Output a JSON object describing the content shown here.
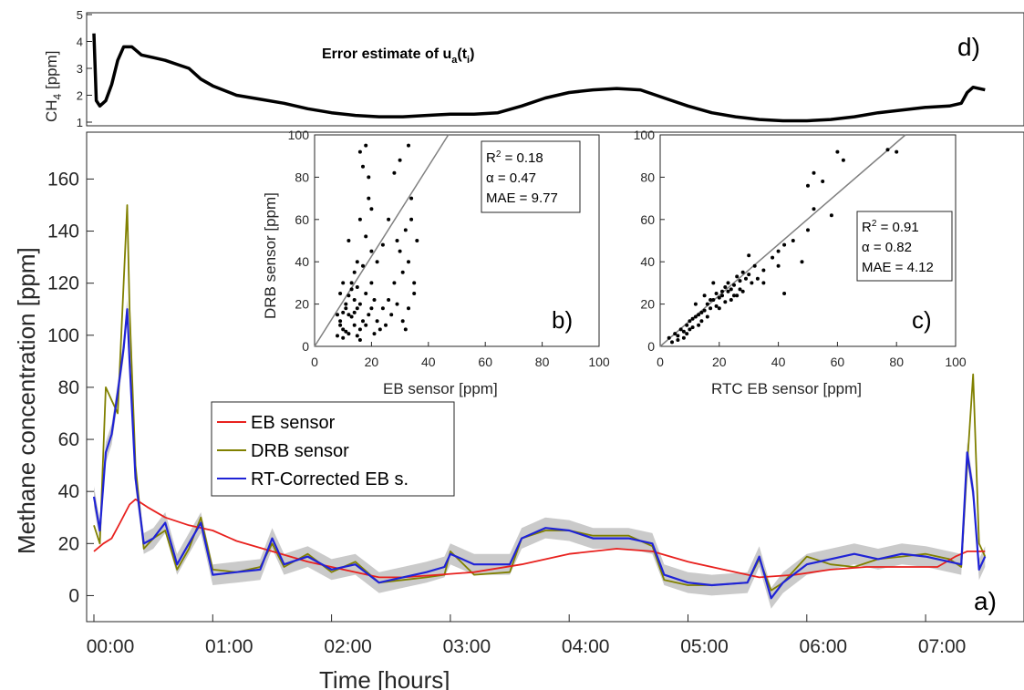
{
  "chart_data": [
    {
      "id": "a",
      "type": "line",
      "panel_label": "a)",
      "xlabel": "Time [hours]",
      "ylabel": "Methane concentration [ppm]",
      "x_tick_labels": [
        "00:00",
        "01:00",
        "02:00",
        "03:00",
        "04:00",
        "05:00",
        "06:00",
        "07:00"
      ],
      "x_tick_values_hours": [
        0,
        1,
        2,
        3,
        4,
        5,
        6,
        7
      ],
      "xlim_hours": [
        0,
        7.5
      ],
      "ylim": [
        -10,
        178
      ],
      "y_ticks": [
        0,
        20,
        40,
        60,
        80,
        100,
        120,
        140,
        160
      ],
      "grid": false,
      "legend_position": "middle-left",
      "series": [
        {
          "name": "EB sensor",
          "color": "#e8211e",
          "x_hours": [
            0,
            0.08,
            0.15,
            0.22,
            0.3,
            0.35,
            0.45,
            0.6,
            0.8,
            1.0,
            1.2,
            1.5,
            1.8,
            2.1,
            2.4,
            2.6,
            2.9,
            3.2,
            3.6,
            4.0,
            4.4,
            4.7,
            5.0,
            5.3,
            5.6,
            5.9,
            6.2,
            6.5,
            6.8,
            7.1,
            7.25,
            7.35,
            7.5
          ],
          "values": [
            17,
            20,
            22,
            28,
            35,
            37,
            34,
            30,
            27,
            25,
            21,
            17,
            13,
            10,
            7,
            7,
            8,
            9,
            12,
            16,
            18,
            17,
            13,
            10,
            7,
            8,
            10,
            11,
            11,
            11,
            15,
            17,
            17
          ]
        },
        {
          "name": "DRB sensor",
          "color": "#808000",
          "x_hours": [
            0,
            0.05,
            0.1,
            0.15,
            0.2,
            0.25,
            0.28,
            0.3,
            0.35,
            0.42,
            0.5,
            0.6,
            0.7,
            0.8,
            0.9,
            1.0,
            1.2,
            1.4,
            1.5,
            1.6,
            1.8,
            2.0,
            2.2,
            2.4,
            2.6,
            2.8,
            2.95,
            3.0,
            3.2,
            3.5,
            3.6,
            3.8,
            4.0,
            4.2,
            4.5,
            4.7,
            4.8,
            5.0,
            5.2,
            5.5,
            5.6,
            5.7,
            5.8,
            6.0,
            6.2,
            6.4,
            6.6,
            6.8,
            7.0,
            7.2,
            7.3,
            7.35,
            7.4,
            7.45,
            7.5
          ],
          "values": [
            27,
            20,
            80,
            75,
            70,
            120,
            150,
            110,
            50,
            18,
            22,
            25,
            10,
            18,
            30,
            10,
            9,
            11,
            20,
            11,
            16,
            9,
            13,
            5,
            6,
            7,
            8,
            17,
            8,
            9,
            22,
            25,
            25,
            23,
            23,
            19,
            6,
            4,
            4,
            5,
            14,
            2,
            5,
            15,
            12,
            11,
            14,
            15,
            16,
            14,
            11,
            50,
            85,
            20,
            15
          ]
        },
        {
          "name": "RT-Corrected EB s.",
          "color": "#1f23d6",
          "x_hours": [
            0,
            0.05,
            0.1,
            0.15,
            0.2,
            0.25,
            0.28,
            0.3,
            0.35,
            0.42,
            0.5,
            0.6,
            0.7,
            0.8,
            0.9,
            1.0,
            1.2,
            1.4,
            1.5,
            1.6,
            1.8,
            2.0,
            2.2,
            2.4,
            2.6,
            2.8,
            2.95,
            3.0,
            3.2,
            3.5,
            3.6,
            3.8,
            4.0,
            4.2,
            4.5,
            4.7,
            4.8,
            5.0,
            5.2,
            5.5,
            5.6,
            5.7,
            5.8,
            6.0,
            6.2,
            6.4,
            6.6,
            6.8,
            7.0,
            7.2,
            7.3,
            7.35,
            7.4,
            7.45,
            7.5
          ],
          "values": [
            38,
            25,
            55,
            62,
            78,
            95,
            110,
            90,
            45,
            20,
            22,
            28,
            12,
            20,
            28,
            8,
            9,
            10,
            22,
            12,
            15,
            10,
            12,
            5,
            7,
            9,
            11,
            16,
            12,
            12,
            22,
            26,
            25,
            22,
            22,
            20,
            8,
            5,
            4,
            5,
            15,
            -1,
            5,
            12,
            14,
            16,
            14,
            16,
            15,
            13,
            12,
            55,
            40,
            10,
            15
          ]
        }
      ]
    },
    {
      "id": "b",
      "type": "scatter",
      "panel_label": "b)",
      "xlabel": "EB sensor [ppm]",
      "ylabel": "DRB sensor [ppm]",
      "xlim": [
        0,
        100
      ],
      "ylim": [
        0,
        100
      ],
      "x_ticks": [
        0,
        20,
        40,
        60,
        80,
        100
      ],
      "y_ticks": [
        0,
        20,
        40,
        60,
        80,
        100
      ],
      "fit_line": {
        "x": [
          0,
          47
        ],
        "y": [
          0,
          100
        ]
      },
      "annotation_lines": [
        {
          "main": "R",
          "sup": "2",
          "rest": " = 0.18"
        },
        {
          "main": "α",
          "sup": "",
          "rest": " = 0.47"
        },
        {
          "main": "MAE",
          "sup": "",
          "rest": " = 9.77"
        }
      ],
      "points": [
        [
          8,
          5
        ],
        [
          9,
          12
        ],
        [
          10,
          8
        ],
        [
          11,
          20
        ],
        [
          9,
          25
        ],
        [
          12,
          15
        ],
        [
          13,
          30
        ],
        [
          10,
          4
        ],
        [
          14,
          22
        ],
        [
          15,
          40
        ],
        [
          16,
          60
        ],
        [
          17,
          85
        ],
        [
          18,
          95
        ],
        [
          16,
          92
        ],
        [
          19,
          70
        ],
        [
          20,
          45
        ],
        [
          14,
          10
        ],
        [
          12,
          6
        ],
        [
          11,
          18
        ],
        [
          13,
          27
        ],
        [
          15,
          18
        ],
        [
          17,
          12
        ],
        [
          18,
          25
        ],
        [
          20,
          30
        ],
        [
          19,
          15
        ],
        [
          16,
          8
        ],
        [
          22,
          12
        ],
        [
          24,
          18
        ],
        [
          26,
          22
        ],
        [
          28,
          30
        ],
        [
          30,
          45
        ],
        [
          32,
          55
        ],
        [
          34,
          60
        ],
        [
          33,
          40
        ],
        [
          31,
          35
        ],
        [
          29,
          20
        ],
        [
          27,
          15
        ],
        [
          25,
          10
        ],
        [
          23,
          8
        ],
        [
          21,
          6
        ],
        [
          35,
          25
        ],
        [
          36,
          50
        ],
        [
          34,
          70
        ],
        [
          33,
          95
        ],
        [
          30,
          88
        ],
        [
          28,
          82
        ],
        [
          26,
          60
        ],
        [
          24,
          48
        ],
        [
          22,
          40
        ],
        [
          10,
          30
        ],
        [
          9,
          10
        ],
        [
          8,
          15
        ],
        [
          12,
          50
        ],
        [
          14,
          35
        ],
        [
          15,
          28
        ],
        [
          17,
          38
        ],
        [
          18,
          52
        ],
        [
          19,
          80
        ],
        [
          20,
          65
        ],
        [
          21,
          22
        ],
        [
          11,
          7
        ],
        [
          13,
          14
        ],
        [
          15,
          5
        ],
        [
          16,
          3
        ],
        [
          10,
          16
        ],
        [
          12,
          24
        ],
        [
          14,
          16
        ],
        [
          16,
          20
        ],
        [
          18,
          10
        ],
        [
          20,
          18
        ],
        [
          29,
          50
        ],
        [
          31,
          12
        ],
        [
          33,
          18
        ],
        [
          35,
          30
        ],
        [
          32,
          8
        ]
      ]
    },
    {
      "id": "c",
      "type": "scatter",
      "panel_label": "c)",
      "xlabel": "RTC EB sensor [ppm]",
      "ylabel": "",
      "xlim": [
        0,
        100
      ],
      "ylim": [
        0,
        100
      ],
      "x_ticks": [
        0,
        20,
        40,
        60,
        80,
        100
      ],
      "y_ticks": [
        0,
        20,
        40,
        60,
        80,
        100
      ],
      "fit_line": {
        "x": [
          0,
          83
        ],
        "y": [
          0,
          100
        ]
      },
      "annotation_lines": [
        {
          "main": "R",
          "sup": "2",
          "rest": " = 0.91"
        },
        {
          "main": "α",
          "sup": "",
          "rest": " = 0.82"
        },
        {
          "main": "MAE",
          "sup": "",
          "rest": " = 4.12"
        }
      ],
      "points": [
        [
          3,
          4
        ],
        [
          5,
          6
        ],
        [
          6,
          5
        ],
        [
          7,
          8
        ],
        [
          8,
          7
        ],
        [
          9,
          10
        ],
        [
          10,
          12
        ],
        [
          11,
          9
        ],
        [
          12,
          14
        ],
        [
          13,
          15
        ],
        [
          14,
          12
        ],
        [
          15,
          17
        ],
        [
          16,
          20
        ],
        [
          17,
          18
        ],
        [
          18,
          22
        ],
        [
          19,
          25
        ],
        [
          20,
          23
        ],
        [
          21,
          26
        ],
        [
          22,
          28
        ],
        [
          23,
          30
        ],
        [
          24,
          27
        ],
        [
          25,
          29
        ],
        [
          26,
          33
        ],
        [
          27,
          31
        ],
        [
          28,
          35
        ],
        [
          30,
          34
        ],
        [
          32,
          38
        ],
        [
          35,
          36
        ],
        [
          38,
          42
        ],
        [
          40,
          45
        ],
        [
          42,
          48
        ],
        [
          45,
          50
        ],
        [
          48,
          40
        ],
        [
          50,
          55
        ],
        [
          52,
          65
        ],
        [
          55,
          78
        ],
        [
          58,
          62
        ],
        [
          60,
          92
        ],
        [
          62,
          88
        ],
        [
          52,
          82
        ],
        [
          50,
          76
        ],
        [
          30,
          43
        ],
        [
          40,
          38
        ],
        [
          35,
          30
        ],
        [
          42,
          25
        ],
        [
          18,
          30
        ],
        [
          15,
          24
        ],
        [
          12,
          20
        ],
        [
          10,
          8
        ],
        [
          8,
          4
        ],
        [
          6,
          3
        ],
        [
          4,
          2
        ],
        [
          9,
          6
        ],
        [
          11,
          13
        ],
        [
          13,
          10
        ],
        [
          16,
          14
        ],
        [
          20,
          18
        ],
        [
          22,
          21
        ],
        [
          24,
          22
        ],
        [
          26,
          24
        ],
        [
          28,
          26
        ],
        [
          80,
          92
        ],
        [
          77,
          93
        ],
        [
          14,
          16
        ],
        [
          17,
          22
        ],
        [
          19,
          19
        ],
        [
          21,
          24
        ],
        [
          23,
          26
        ],
        [
          25,
          24
        ],
        [
          27,
          27
        ],
        [
          29,
          32
        ],
        [
          31,
          30
        ],
        [
          33,
          32
        ]
      ]
    },
    {
      "id": "d",
      "type": "line",
      "panel_label": "d)",
      "title": "Error estimate of u",
      "title_subscript": "a",
      "title_after": "(t",
      "title_subscript2": "i",
      "title_end": ")",
      "ylabel_main": "CH",
      "ylabel_sub": "4",
      "ylabel_after": " [ppm]",
      "xlim_hours": [
        0,
        7.5
      ],
      "ylim": [
        1,
        5
      ],
      "y_ticks": [
        1,
        2,
        3,
        4,
        5
      ],
      "series": [
        {
          "name": "",
          "color": "#000000",
          "x_hours": [
            0,
            0.02,
            0.05,
            0.1,
            0.15,
            0.2,
            0.25,
            0.32,
            0.4,
            0.5,
            0.6,
            0.7,
            0.8,
            0.9,
            1.0,
            1.2,
            1.4,
            1.6,
            1.8,
            2.0,
            2.2,
            2.4,
            2.6,
            2.8,
            3.0,
            3.2,
            3.4,
            3.6,
            3.8,
            4.0,
            4.2,
            4.4,
            4.6,
            4.8,
            5.0,
            5.2,
            5.4,
            5.6,
            5.8,
            6.0,
            6.2,
            6.4,
            6.6,
            6.8,
            7.0,
            7.2,
            7.3,
            7.35,
            7.4,
            7.5
          ],
          "values": [
            4.3,
            1.8,
            1.6,
            1.8,
            2.4,
            3.3,
            3.8,
            3.8,
            3.5,
            3.4,
            3.3,
            3.15,
            3.0,
            2.6,
            2.35,
            2.0,
            1.85,
            1.7,
            1.5,
            1.35,
            1.25,
            1.2,
            1.2,
            1.25,
            1.3,
            1.3,
            1.35,
            1.6,
            1.9,
            2.1,
            2.2,
            2.25,
            2.2,
            1.9,
            1.6,
            1.35,
            1.2,
            1.1,
            1.05,
            1.05,
            1.1,
            1.2,
            1.35,
            1.45,
            1.55,
            1.6,
            1.7,
            2.1,
            2.3,
            2.2
          ]
        }
      ]
    }
  ],
  "legend": {
    "entries": [
      {
        "label": "EB sensor",
        "color": "#e8211e"
      },
      {
        "label": "DRB sensor",
        "color": "#808000"
      },
      {
        "label": "RT-Corrected EB s.",
        "color": "#1f23d6"
      }
    ]
  },
  "colors": {
    "band": "#b3b3b3",
    "fit_line": "#808080",
    "axes": "#262626"
  }
}
